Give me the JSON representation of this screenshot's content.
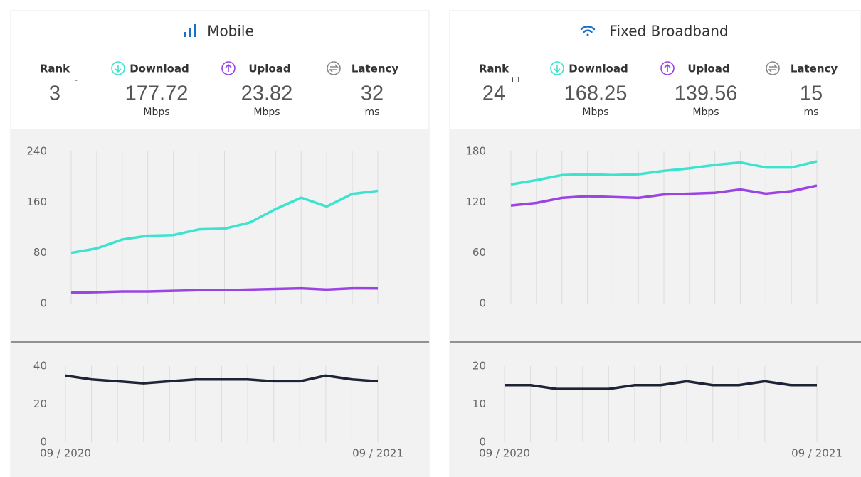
{
  "panels": [
    {
      "title": "Mobile",
      "rank_label": "Rank",
      "rank": 3,
      "rank_change": "-",
      "stats": [
        {
          "value": 177.72,
          "unit": "Mbps"
        },
        {
          "value": 23.82,
          "unit": "Mbps"
        },
        {
          "value": 32,
          "unit": "ms"
        }
      ]
    },
    {
      "title": "Fixed Broadband",
      "rank_label": "Rank",
      "rank": 24,
      "rank_change": "+1",
      "stats": [
        {
          "value": 168.25,
          "unit": "Mbps"
        },
        {
          "value": 139.56,
          "unit": "Mbps"
        },
        {
          "value": 15,
          "unit": "ms"
        }
      ]
    }
  ],
  "chart_data": [
    {
      "type": "line",
      "ylim": [
        0,
        240
      ],
      "yticks": [
        0,
        80,
        160,
        240
      ],
      "series": [
        {
          "name": "Download",
          "color": "#3ee3cf",
          "values": [
            80,
            87,
            101,
            107,
            108,
            117,
            118,
            128,
            149,
            167,
            153,
            173,
            177.72
          ]
        },
        {
          "name": "Upload",
          "color": "#9a44e3",
          "values": [
            17,
            18,
            19,
            19,
            20,
            21,
            21,
            22,
            23,
            24,
            22,
            24,
            23.82
          ]
        }
      ]
    },
    {
      "type": "line",
      "ylim": [
        0,
        40
      ],
      "yticks": [
        0,
        20,
        40
      ],
      "categories": [
        "09 / 2020",
        null,
        null,
        null,
        null,
        null,
        null,
        null,
        null,
        null,
        null,
        null,
        "09 / 2021"
      ],
      "series": [
        {
          "name": "Latency",
          "color": "#1f2336",
          "values": [
            35,
            33,
            32,
            31,
            32,
            33,
            33,
            33,
            32,
            32,
            35,
            33,
            32
          ]
        }
      ]
    },
    {
      "type": "line",
      "ylim": [
        0,
        180
      ],
      "yticks": [
        0,
        60,
        120,
        180
      ],
      "series": [
        {
          "name": "Download",
          "color": "#3ee3cf",
          "values": [
            141,
            146,
            152,
            153,
            152,
            153,
            157,
            160,
            164,
            167,
            161,
            161,
            168.25
          ]
        },
        {
          "name": "Upload",
          "color": "#9a44e3",
          "values": [
            116,
            119,
            125,
            127,
            126,
            125,
            129,
            130,
            131,
            135,
            130,
            133,
            139.56
          ]
        }
      ]
    },
    {
      "type": "line",
      "ylim": [
        0,
        20
      ],
      "yticks": [
        0,
        10,
        20
      ],
      "categories": [
        "09 / 2020",
        null,
        null,
        null,
        null,
        null,
        null,
        null,
        null,
        null,
        null,
        null,
        "09 / 2021"
      ],
      "series": [
        {
          "name": "Latency",
          "color": "#1f2336",
          "values": [
            15,
            15,
            14,
            14,
            14,
            15,
            15,
            16,
            15,
            15,
            16,
            15,
            15
          ]
        }
      ]
    }
  ]
}
